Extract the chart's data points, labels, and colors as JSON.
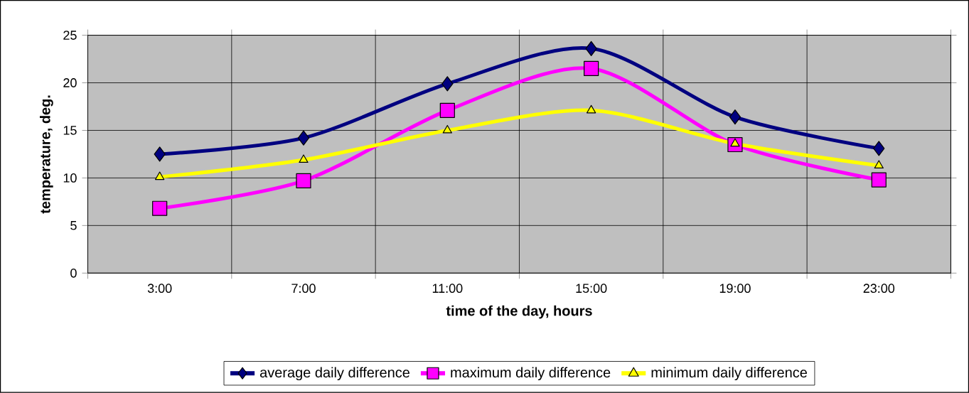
{
  "chart_data": {
    "type": "line",
    "xlabel": "time of the day, hours",
    "ylabel": "temperature, deg.",
    "categories": [
      "3:00",
      "7:00",
      "11:00",
      "15:00",
      "19:00",
      "23:00"
    ],
    "series": [
      {
        "name": "average daily difference",
        "color": "#000080",
        "marker": "diamond",
        "values": [
          12.5,
          14.2,
          19.9,
          23.6,
          16.4,
          13.1
        ]
      },
      {
        "name": "maximum daily difference",
        "color": "#ff00ff",
        "marker": "square",
        "values": [
          6.8,
          9.7,
          17.1,
          21.5,
          13.5,
          9.8
        ]
      },
      {
        "name": "minimum daily difference",
        "color": "#ffff00",
        "marker": "triangle",
        "values": [
          10.1,
          11.9,
          15.0,
          17.1,
          13.6,
          11.3
        ]
      }
    ],
    "ylim": [
      0,
      25
    ],
    "yticks": [
      0,
      5,
      10,
      15,
      20,
      25
    ],
    "grid": true,
    "legend": "bottom"
  }
}
